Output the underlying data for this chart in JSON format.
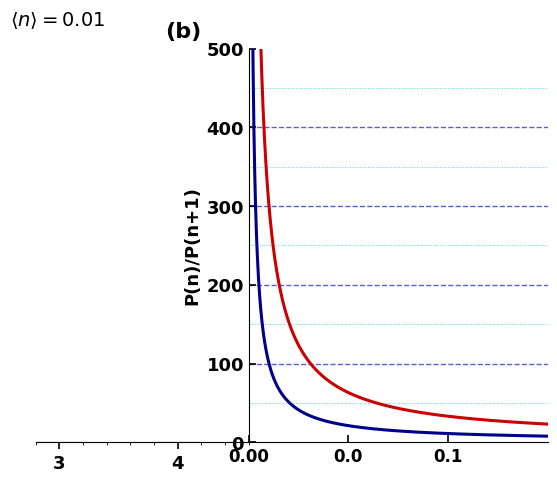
{
  "title_left": "$\\langle n \\rangle = 0.01$",
  "title_b": "(b)",
  "ylabel_b": "P(n)/P(n+1)",
  "ylim_b": [
    0,
    500
  ],
  "xlim_b": [
    0.0,
    0.15
  ],
  "yticks_b": [
    0,
    100,
    200,
    300,
    400,
    500
  ],
  "curve1_color": "#00008B",
  "curve2_color": "#CC0000",
  "bar_color": "#999999",
  "bar_xlim": [
    2.8,
    4.6
  ],
  "bar_xticks": [
    3,
    4
  ],
  "n_bar_mean": 0.01,
  "background_color": "#ffffff",
  "grid_color_dotted": "#00CCCC",
  "grid_color_dashed": "#3333CC",
  "fig_width": 4.74,
  "fig_height": 4.74,
  "blue_scale": 1.0,
  "red_scale": 3.0
}
